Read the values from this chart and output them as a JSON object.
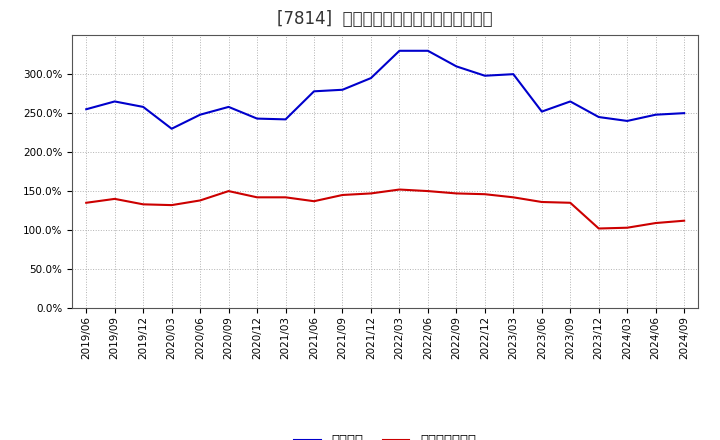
{
  "title": "[7814]  固定比率、固定長期適合率の推移",
  "fixed_ratio": {
    "label": "固定比率",
    "color": "#0000cc",
    "data": [
      [
        "2019/06",
        255.0
      ],
      [
        "2019/09",
        265.0
      ],
      [
        "2019/12",
        258.0
      ],
      [
        "2020/03",
        230.0
      ],
      [
        "2020/06",
        248.0
      ],
      [
        "2020/09",
        258.0
      ],
      [
        "2020/12",
        243.0
      ],
      [
        "2021/03",
        242.0
      ],
      [
        "2021/06",
        278.0
      ],
      [
        "2021/09",
        280.0
      ],
      [
        "2021/12",
        295.0
      ],
      [
        "2022/03",
        330.0
      ],
      [
        "2022/06",
        330.0
      ],
      [
        "2022/09",
        310.0
      ],
      [
        "2022/12",
        298.0
      ],
      [
        "2023/03",
        300.0
      ],
      [
        "2023/06",
        252.0
      ],
      [
        "2023/09",
        265.0
      ],
      [
        "2023/12",
        245.0
      ],
      [
        "2024/03",
        240.0
      ],
      [
        "2024/06",
        248.0
      ],
      [
        "2024/09",
        250.0
      ]
    ]
  },
  "long_term_ratio": {
    "label": "固定長期適合率",
    "color": "#cc0000",
    "data": [
      [
        "2019/06",
        135.0
      ],
      [
        "2019/09",
        140.0
      ],
      [
        "2019/12",
        133.0
      ],
      [
        "2020/03",
        132.0
      ],
      [
        "2020/06",
        138.0
      ],
      [
        "2020/09",
        150.0
      ],
      [
        "2020/12",
        142.0
      ],
      [
        "2021/03",
        142.0
      ],
      [
        "2021/06",
        137.0
      ],
      [
        "2021/09",
        145.0
      ],
      [
        "2021/12",
        147.0
      ],
      [
        "2022/03",
        152.0
      ],
      [
        "2022/06",
        150.0
      ],
      [
        "2022/09",
        147.0
      ],
      [
        "2022/12",
        146.0
      ],
      [
        "2023/03",
        142.0
      ],
      [
        "2023/06",
        136.0
      ],
      [
        "2023/09",
        135.0
      ],
      [
        "2023/12",
        102.0
      ],
      [
        "2024/03",
        103.0
      ],
      [
        "2024/06",
        109.0
      ],
      [
        "2024/09",
        112.0
      ]
    ]
  },
  "ylim": [
    0,
    350
  ],
  "yticks": [
    0,
    50,
    100,
    150,
    200,
    250,
    300
  ],
  "background_color": "#ffffff",
  "plot_bg_color": "#ffffff",
  "grid_color": "#aaaaaa",
  "title_fontsize": 12,
  "tick_fontsize": 7.5,
  "legend_fontsize": 9.5
}
